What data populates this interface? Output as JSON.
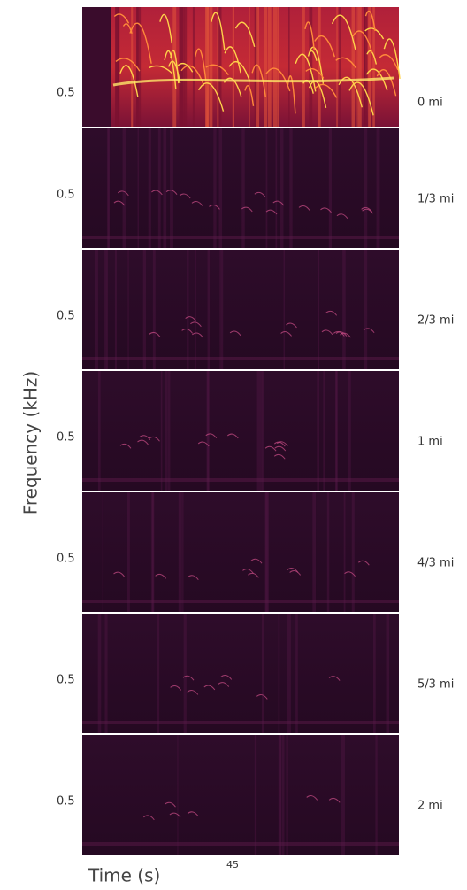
{
  "y_axis_label": "Frequency (kHz)",
  "x_axis_label": "Time (s)",
  "x_tick": "45",
  "panels": [
    {
      "y_tick": "0.5",
      "distance": "0 mi"
    },
    {
      "y_tick": "0.5",
      "distance": "1/3 mi"
    },
    {
      "y_tick": "0.5",
      "distance": "2/3 mi"
    },
    {
      "y_tick": "0.5",
      "distance": "1 mi"
    },
    {
      "y_tick": "0.5",
      "distance": "4/3 mi"
    },
    {
      "y_tick": "0.5",
      "distance": "5/3 mi"
    },
    {
      "y_tick": "0.5",
      "distance": "2 mi"
    }
  ]
}
